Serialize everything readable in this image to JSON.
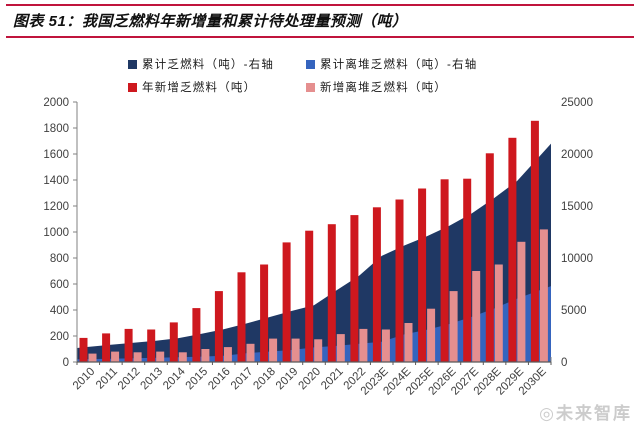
{
  "header": {
    "title": "图表 51：我国乏燃料年新增量和累计待处理量预测（吨）"
  },
  "colors": {
    "rule_red": "#c0143c",
    "navy": "#1f3864",
    "blue": "#3564be",
    "red": "#ce181e",
    "pink": "#e58f8f",
    "axis_text": "#404040",
    "axis_line": "#808080",
    "baseline": "#595959",
    "watermark_gray": "#cccccc"
  },
  "watermark": "◎未来智库",
  "chart_data": {
    "type": "combo-area-bar",
    "categories": [
      "2010",
      "2011",
      "2012",
      "2013",
      "2014",
      "2015",
      "2016",
      "2017",
      "2018",
      "2019",
      "2020",
      "2021",
      "2022",
      "2023E",
      "2024E",
      "2025E",
      "2026E",
      "2027E",
      "2028E",
      "2029E",
      "2030E"
    ],
    "series": [
      {
        "name": "累计乏燃料（吨）-右轴",
        "type": "area",
        "axis": "right",
        "color_key": "navy",
        "values": [
          1450,
          1650,
          1850,
          2050,
          2300,
          2700,
          3150,
          3700,
          4300,
          4900,
          5450,
          6900,
          8300,
          10200,
          11200,
          12100,
          13100,
          14300,
          15800,
          17400,
          19800
        ]
      },
      {
        "name": "累计离堆乏燃料（吨）-右轴",
        "type": "area",
        "axis": "right",
        "color_key": "blue",
        "values": [
          280,
          320,
          360,
          400,
          450,
          520,
          600,
          850,
          1000,
          1150,
          1400,
          1550,
          1750,
          1950,
          2650,
          3100,
          3650,
          4350,
          5150,
          6100,
          6900
        ]
      },
      {
        "name": "年新增乏燃料（吨）",
        "type": "bar",
        "axis": "left",
        "color_key": "red",
        "values": [
          185,
          220,
          255,
          250,
          305,
          415,
          545,
          690,
          750,
          920,
          1010,
          1060,
          1130,
          1190,
          1250,
          1335,
          1405,
          1410,
          1605,
          1725,
          1855
        ]
      },
      {
        "name": "新增离堆乏燃料（吨）",
        "type": "bar",
        "axis": "left",
        "color_key": "pink",
        "values": [
          65,
          80,
          75,
          80,
          75,
          100,
          115,
          140,
          180,
          180,
          175,
          215,
          255,
          250,
          300,
          410,
          545,
          700,
          750,
          925,
          1020
        ]
      }
    ],
    "left_axis": {
      "min": 0,
      "max": 2000,
      "step": 200,
      "ticks": [
        "0",
        "200",
        "400",
        "600",
        "800",
        "1000",
        "1200",
        "1400",
        "1600",
        "1800",
        "2000"
      ]
    },
    "right_axis": {
      "min": 0,
      "max": 25000,
      "step": 5000,
      "ticks": [
        "0",
        "5000",
        "10000",
        "15000",
        "20000",
        "25000"
      ]
    },
    "legend_position": "top",
    "grid": "off"
  }
}
